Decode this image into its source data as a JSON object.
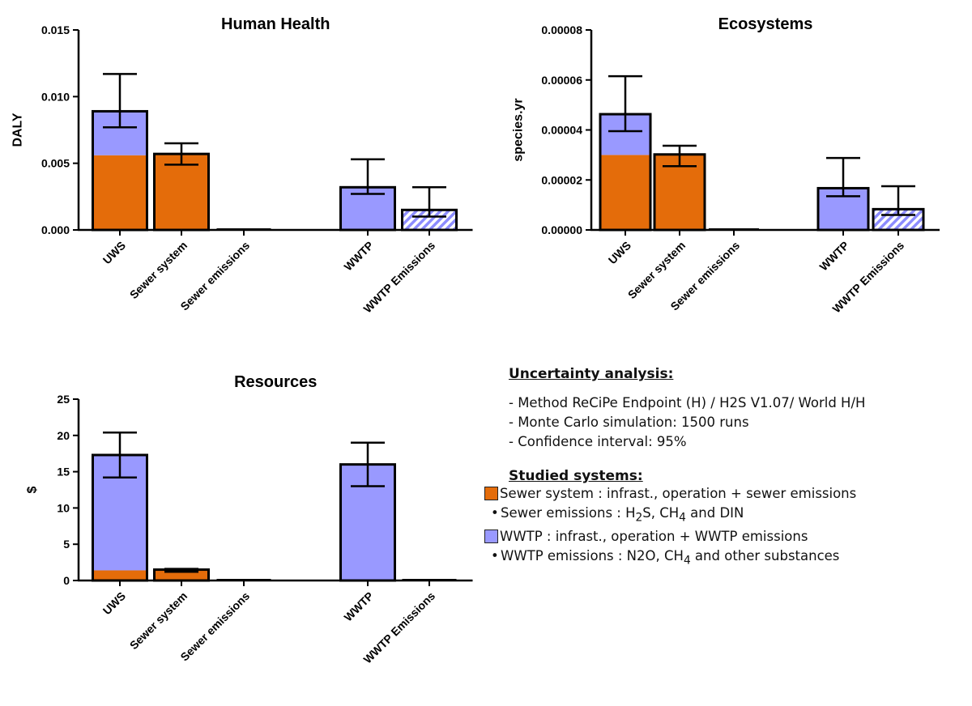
{
  "colors": {
    "sewer": "#e46c0a",
    "wwtp": "#9999ff",
    "hatch_fg": "#8c8cff",
    "hatch_bg": "#ffffff",
    "axis": "#000000"
  },
  "chart_data": [
    {
      "type": "bar",
      "stacked": true,
      "title": "Human Health",
      "ylabel": "DALY",
      "categories": [
        "UWS",
        "Sewer system",
        "Sewer emissions",
        "WWTP",
        "WWTP Emissions"
      ],
      "ylim": [
        0,
        0.015
      ],
      "yticks": [
        "0.000",
        "0.005",
        "0.010",
        "0.015"
      ],
      "ytick_values": [
        0,
        0.005,
        0.01,
        0.015
      ],
      "series": [
        {
          "values": [
            0.0056,
            0.0057,
            0.0,
            0.0,
            0.0
          ],
          "color_key": "sewer",
          "pattern": "solid"
        },
        {
          "values": [
            0.0033,
            0.0,
            0.0,
            0.0032,
            0.0
          ],
          "color_key": "wwtp",
          "pattern": "solid"
        },
        {
          "values": [
            0.0,
            0.0,
            0.0,
            0.0,
            0.0015
          ],
          "color_key": "wwtp",
          "pattern": "hatch"
        }
      ],
      "totals": [
        0.0089,
        0.0057,
        0.0,
        0.0032,
        0.0015
      ],
      "error_low": [
        0.0077,
        0.0049,
        0.0,
        0.0027,
        0.001
      ],
      "error_high": [
        0.0117,
        0.0065,
        0.0,
        0.0053,
        0.0032
      ],
      "grid": false
    },
    {
      "type": "bar",
      "stacked": true,
      "title": "Ecosystems",
      "ylabel": "species.yr",
      "categories": [
        "UWS",
        "Sewer system",
        "Sewer emissions",
        "WWTP",
        "WWTP Emissions"
      ],
      "ylim": [
        0,
        8e-05
      ],
      "yticks": [
        "0.00000",
        "0.00002",
        "0.00004",
        "0.00006",
        "0.00008"
      ],
      "ytick_values": [
        0,
        2e-05,
        4e-05,
        6e-05,
        8e-05
      ],
      "series": [
        {
          "values": [
            3e-05,
            3.02e-05,
            0.0,
            0.0,
            0.0
          ],
          "color_key": "sewer",
          "pattern": "solid"
        },
        {
          "values": [
            1.63e-05,
            0.0,
            0.0,
            1.67e-05,
            0.0
          ],
          "color_key": "wwtp",
          "pattern": "solid"
        },
        {
          "values": [
            0.0,
            0.0,
            0.0,
            0.0,
            8.3e-06
          ],
          "color_key": "wwtp",
          "pattern": "hatch"
        }
      ],
      "totals": [
        4.63e-05,
        3.02e-05,
        0.0,
        1.67e-05,
        8.3e-06
      ],
      "error_low": [
        3.95e-05,
        2.55e-05,
        0.0,
        1.35e-05,
        6e-06
      ],
      "error_high": [
        6.15e-05,
        3.37e-05,
        0.0,
        2.88e-05,
        1.75e-05
      ],
      "grid": false
    },
    {
      "type": "bar",
      "stacked": true,
      "title": "Resources",
      "ylabel": "$",
      "categories": [
        "UWS",
        "Sewer system",
        "Sewer emissions",
        "WWTP",
        "WWTP Emissions"
      ],
      "ylim": [
        0,
        25
      ],
      "yticks": [
        "0",
        "5",
        "10",
        "15",
        "20",
        "25"
      ],
      "ytick_values": [
        0,
        5,
        10,
        15,
        20,
        25
      ],
      "series": [
        {
          "values": [
            1.4,
            1.5,
            0.0,
            0.0,
            0.0
          ],
          "color_key": "sewer",
          "pattern": "solid"
        },
        {
          "values": [
            15.9,
            0.0,
            0.0,
            16.0,
            0.0
          ],
          "color_key": "wwtp",
          "pattern": "solid"
        },
        {
          "values": [
            0.0,
            0.0,
            0.0,
            0.0,
            0.0
          ],
          "color_key": "wwtp",
          "pattern": "hatch"
        }
      ],
      "totals": [
        17.3,
        1.5,
        0.0,
        16.0,
        0.0
      ],
      "error_low": [
        14.2,
        1.2,
        0.0,
        13.0,
        0.0
      ],
      "error_high": [
        20.4,
        1.6,
        0.0,
        19.0,
        0.0
      ],
      "grid": false
    }
  ],
  "info": {
    "uncertainty_heading": "Uncertainty analysis:",
    "uncertainty_items": [
      "- Method ReCiPe Endpoint (H) / H2S V1.07/ World H/H",
      "- Monte Carlo simulation: 1500 runs",
      "- Confidence interval: 95%"
    ],
    "studied_heading": "Studied systems:",
    "sewer_system": "Sewer system : infrast., operation + sewer emissions",
    "sewer_emissions": {
      "pre": "Sewer emissions : H",
      "sub1": "2",
      "mid": "S, CH",
      "sub2": "4",
      "post": " and DIN"
    },
    "wwtp": "WWTP : infrast., operation + WWTP emissions",
    "wwtp_emissions": {
      "pre": "WWTP emissions : N2O, CH",
      "sub1": "4",
      "post": " and other substances"
    }
  }
}
